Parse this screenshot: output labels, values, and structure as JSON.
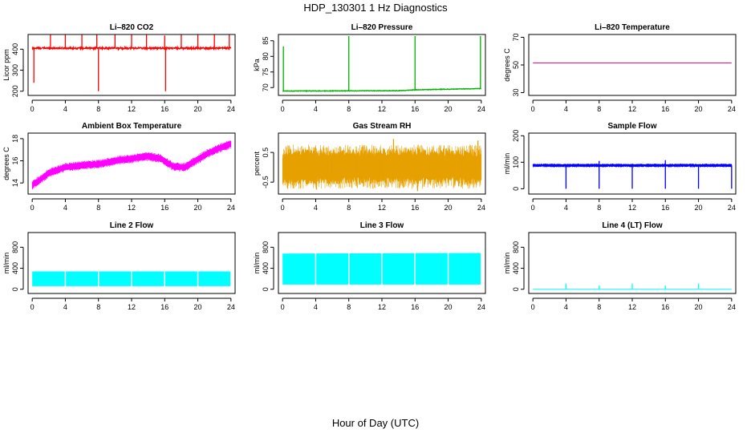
{
  "figure": {
    "title": "HDP_130301  1 Hz Diagnostics",
    "xlabel": "Hour of Day (UTC)"
  },
  "chart_data": [
    {
      "type": "line",
      "title": "Li–820 CO2",
      "ylabel": "Licor ppm",
      "color": "#ff0000",
      "xlim": [
        0,
        24
      ],
      "xticks": [
        0,
        4,
        8,
        12,
        16,
        20,
        24
      ],
      "ylim": [
        180,
        470
      ],
      "yticks": [
        200,
        300,
        400
      ],
      "pattern": "spiky",
      "baseline": [
        [
          0,
          405
        ],
        [
          24,
          405
        ]
      ],
      "noise": 8,
      "spikes": [
        [
          0.2,
          240
        ],
        [
          2.2,
          470
        ],
        [
          4,
          470
        ],
        [
          6,
          470
        ],
        [
          7.8,
          470
        ],
        [
          8,
          200
        ],
        [
          10,
          470
        ],
        [
          12,
          470
        ],
        [
          13.8,
          470
        ],
        [
          16,
          465
        ],
        [
          16.1,
          200
        ],
        [
          18,
          470
        ],
        [
          20,
          470
        ],
        [
          22,
          470
        ],
        [
          23.8,
          470
        ]
      ]
    },
    {
      "type": "line",
      "title": "Li–820 Pressure",
      "ylabel": "kPa",
      "color": "#00b000",
      "xlim": [
        0,
        24
      ],
      "xticks": [
        0,
        4,
        8,
        12,
        16,
        20,
        24
      ],
      "ylim": [
        67.5,
        87
      ],
      "yticks": [
        70,
        75,
        80,
        85
      ],
      "pattern": "spiky",
      "baseline": [
        [
          0,
          68.9
        ],
        [
          14,
          69.0
        ],
        [
          16.3,
          69.3
        ],
        [
          24,
          69.7
        ]
      ],
      "noise": 0.15,
      "spikes": [
        [
          0.1,
          83.2
        ],
        [
          8,
          86.5
        ],
        [
          16,
          86.5
        ],
        [
          23.9,
          86.5
        ]
      ]
    },
    {
      "type": "line",
      "title": "Li–820 Temperature",
      "ylabel": "degrees C",
      "color": "#e0007a",
      "xlim": [
        0,
        24
      ],
      "xticks": [
        0,
        4,
        8,
        12,
        16,
        20,
        24
      ],
      "ylim": [
        28,
        72
      ],
      "yticks": [
        30,
        50,
        70
      ],
      "pattern": "flat",
      "baseline": [
        [
          0,
          51.5
        ],
        [
          24,
          51.5
        ]
      ],
      "noise": 0,
      "spikes": []
    },
    {
      "type": "line",
      "title": "Ambient Box Temperature",
      "ylabel": "degrees C",
      "color": "#ff00ff",
      "xlim": [
        0,
        24
      ],
      "xticks": [
        0,
        4,
        8,
        12,
        16,
        20,
        24
      ],
      "ylim": [
        13,
        18.5
      ],
      "yticks": [
        14,
        16,
        18
      ],
      "pattern": "band",
      "baseline": [
        [
          0,
          13.8
        ],
        [
          1,
          14.3
        ],
        [
          2,
          14.9
        ],
        [
          4,
          15.4
        ],
        [
          6,
          15.6
        ],
        [
          8,
          15.7
        ],
        [
          10,
          16.0
        ],
        [
          12,
          16.2
        ],
        [
          14,
          16.4
        ],
        [
          15.5,
          16.2
        ],
        [
          17,
          15.5
        ],
        [
          18.5,
          15.4
        ],
        [
          19.5,
          15.9
        ],
        [
          21,
          16.6
        ],
        [
          22.5,
          17.1
        ],
        [
          24,
          17.5
        ]
      ],
      "noise": 0.35,
      "spikes": []
    },
    {
      "type": "line",
      "title": "Gas Stream RH",
      "ylabel": "percent",
      "color": "#e6a000",
      "xlim": [
        0,
        24
      ],
      "xticks": [
        0,
        4,
        8,
        12,
        16,
        20,
        24
      ],
      "ylim": [
        -0.9,
        1.15
      ],
      "yticks": [
        -0.5,
        0.5
      ],
      "pattern": "band",
      "baseline": [
        [
          0,
          0.02
        ],
        [
          24,
          0.02
        ]
      ],
      "noise": 0.62,
      "spikes": [
        [
          4.1,
          -0.75
        ],
        [
          13.4,
          0.95
        ],
        [
          16.3,
          -0.8
        ],
        [
          23.6,
          0.9
        ]
      ]
    },
    {
      "type": "line",
      "title": "Sample Flow",
      "ylabel": "ml/min",
      "color": "#0000ff",
      "xlim": [
        0,
        24
      ],
      "xticks": [
        0,
        4,
        8,
        12,
        16,
        20,
        24
      ],
      "ylim": [
        -20,
        210
      ],
      "yticks": [
        0,
        100,
        200
      ],
      "pattern": "band",
      "baseline": [
        [
          0,
          88
        ],
        [
          24,
          88
        ]
      ],
      "noise": 6,
      "spikes": [
        [
          4,
          0
        ],
        [
          8,
          0
        ],
        [
          12,
          0
        ],
        [
          16,
          0
        ],
        [
          20,
          0
        ],
        [
          24,
          0
        ],
        [
          8,
          105
        ],
        [
          16,
          108
        ]
      ]
    },
    {
      "type": "line",
      "title": "Line 2 Flow",
      "ylabel": "ml/min",
      "color": "#00ffff",
      "xlim": [
        0,
        24
      ],
      "xticks": [
        0,
        4,
        8,
        12,
        16,
        20,
        24
      ],
      "ylim": [
        -80,
        1080
      ],
      "yticks": [
        0,
        400,
        800
      ],
      "pattern": "block",
      "baseline": [
        [
          0,
          340
        ],
        [
          24,
          340
        ]
      ],
      "noise": 0,
      "low": 60,
      "gaps": [
        4,
        8,
        12,
        16,
        20
      ],
      "spikes": []
    },
    {
      "type": "line",
      "title": "Line 3 Flow",
      "ylabel": "ml/min",
      "color": "#00ffff",
      "xlim": [
        0,
        24
      ],
      "xticks": [
        0,
        4,
        8,
        12,
        16,
        20,
        24
      ],
      "ylim": [
        -80,
        1080
      ],
      "yticks": [
        0,
        400,
        800
      ],
      "pattern": "block",
      "baseline": [
        [
          0,
          680
        ],
        [
          24,
          690
        ]
      ],
      "noise": 0,
      "low": 90,
      "gaps": [
        4,
        8,
        12,
        16,
        20
      ],
      "spikes": []
    },
    {
      "type": "line",
      "title": "Line 4 (LT) Flow",
      "ylabel": "ml/min",
      "color": "#00ffff",
      "xlim": [
        0,
        24
      ],
      "xticks": [
        0,
        4,
        8,
        12,
        16,
        20,
        24
      ],
      "ylim": [
        -80,
        1080
      ],
      "yticks": [
        0,
        400,
        800
      ],
      "pattern": "flat",
      "baseline": [
        [
          0,
          0
        ],
        [
          24,
          0
        ]
      ],
      "noise": 0,
      "spikes": [
        [
          4,
          110
        ],
        [
          8,
          70
        ],
        [
          12,
          110
        ],
        [
          16,
          70
        ],
        [
          20,
          110
        ]
      ]
    }
  ]
}
